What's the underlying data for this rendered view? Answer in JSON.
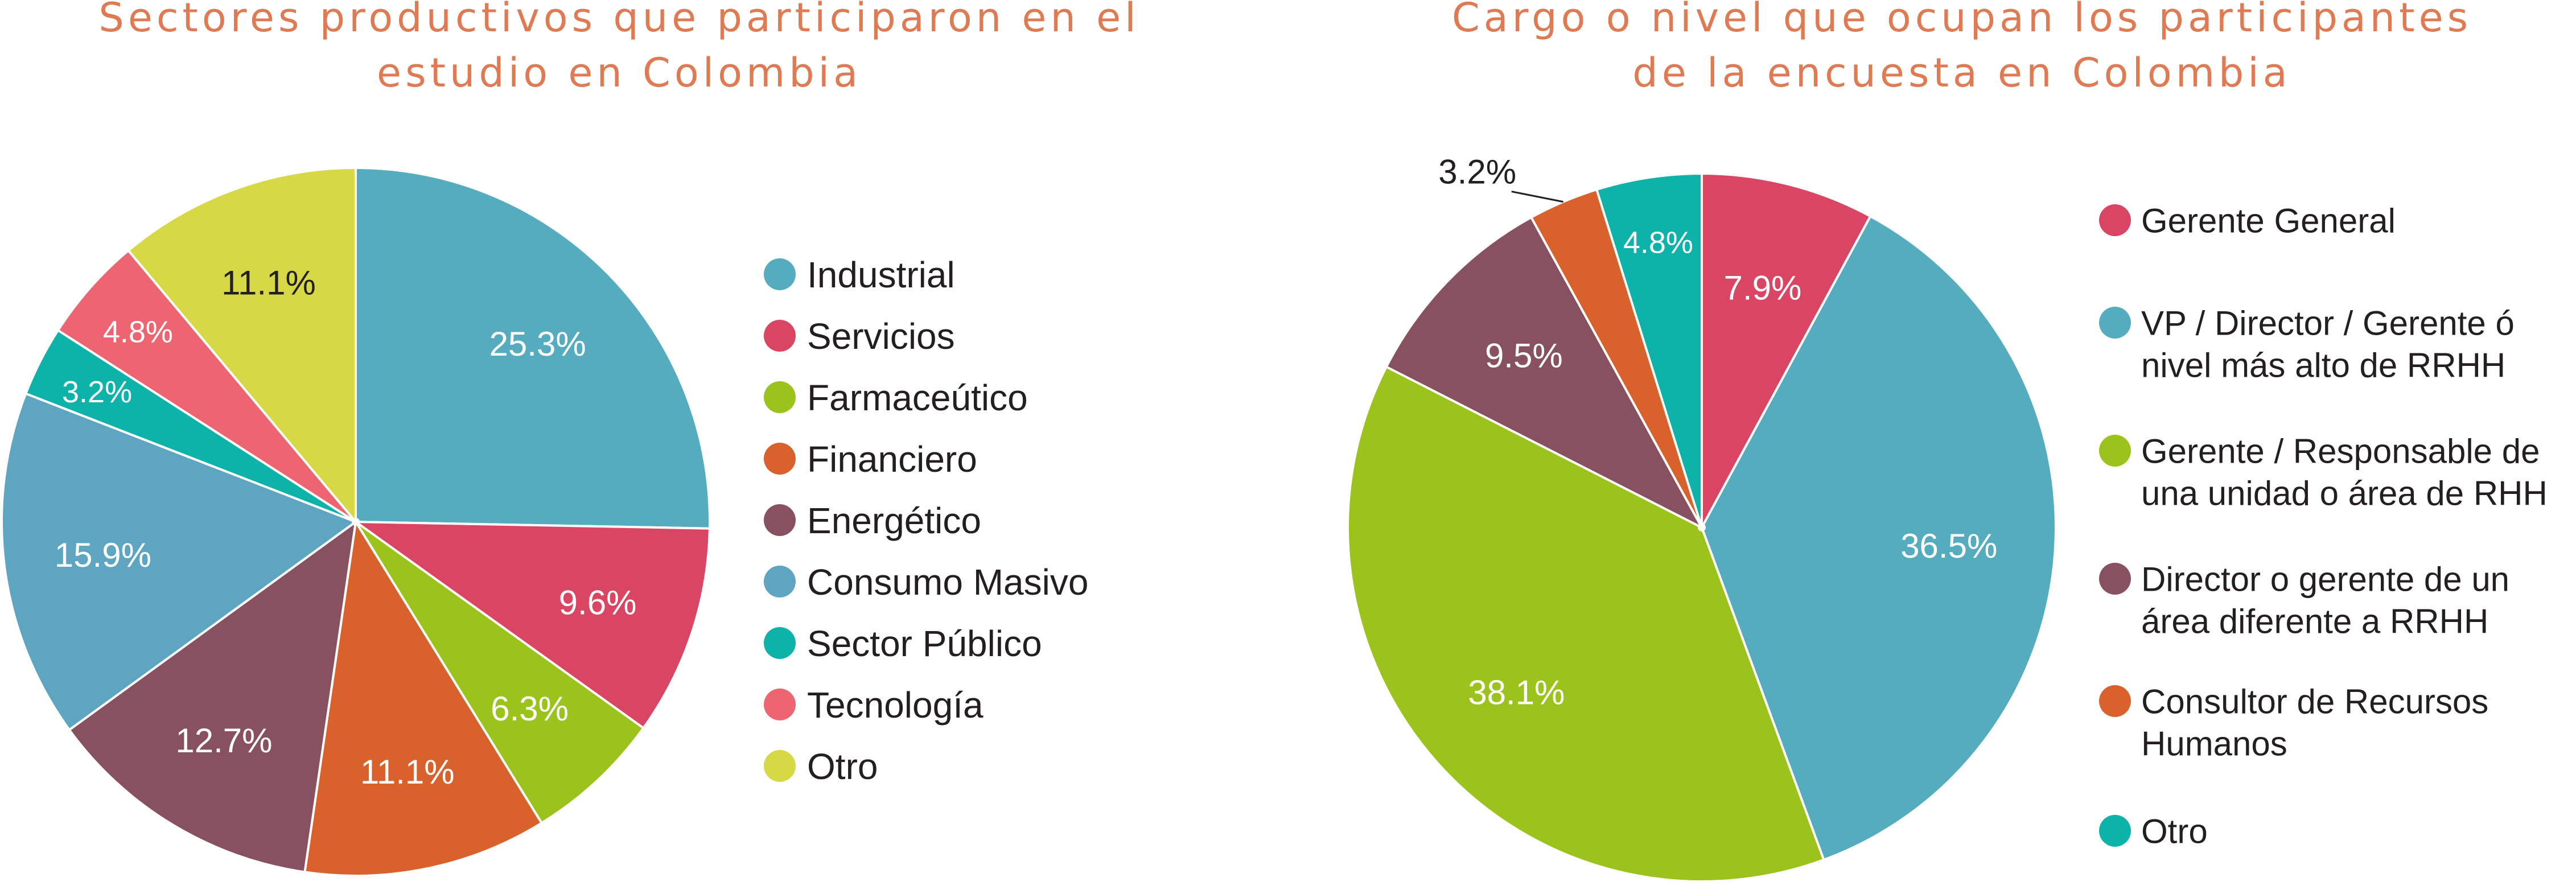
{
  "colors": {
    "title": "#E07A52",
    "slice_edge": "#ffffff",
    "legend_text": "#231F20",
    "label_light": "#ffffff",
    "label_dark": "#231F20"
  },
  "chart_data": [
    {
      "type": "pie",
      "title": "Sectores productivos que participaron en el estudio en Colombia",
      "title_lines": [
        "Sectores productivos que participaron en el",
        "estudio en Colombia"
      ],
      "legend_position": "right",
      "slices": [
        {
          "label": "Industrial",
          "value": 25.3,
          "value_label": "25.3%",
          "color": "#55ACBF",
          "label_color": "#ffffff"
        },
        {
          "label": "Servicios",
          "value": 9.6,
          "value_label": "9.6%",
          "color": "#D94563",
          "label_color": "#ffffff"
        },
        {
          "label": "Farmaceútico",
          "value": 6.3,
          "value_label": "6.3%",
          "color": "#9CC31B",
          "label_color": "#ffffff"
        },
        {
          "label": "Financiero",
          "value": 11.1,
          "value_label": "11.1%",
          "color": "#D9622C",
          "label_color": "#ffffff"
        },
        {
          "label": "Energético",
          "value": 12.7,
          "value_label": "12.7%",
          "color": "#87515F",
          "label_color": "#ffffff"
        },
        {
          "label": "Consumo Masivo",
          "value": 15.9,
          "value_label": "15.9%",
          "color": "#5DA5C1",
          "label_color": "#ffffff"
        },
        {
          "label": "Sector Público",
          "value": 3.2,
          "value_label": "3.2%",
          "color": "#0DB2A9",
          "label_color": "#ffffff"
        },
        {
          "label": "Tecnología",
          "value": 4.8,
          "value_label": "4.8%",
          "color": "#EC6570",
          "label_color": "#ffffff"
        },
        {
          "label": "Otro",
          "value": 11.1,
          "value_label": "11.1%",
          "color": "#D7D845",
          "label_color": "#231F20"
        }
      ]
    },
    {
      "type": "pie",
      "title": "Cargo o nivel que ocupan los participantes de la encuesta en Colombia",
      "title_lines": [
        "Cargo o nivel que ocupan los participantes",
        "de la encuesta en Colombia"
      ],
      "legend_position": "right",
      "slices": [
        {
          "label": "Gerente General",
          "label_lines": [
            "Gerente General"
          ],
          "value": 7.9,
          "value_label": "7.9%",
          "color": "#D94563",
          "label_color": "#ffffff"
        },
        {
          "label": "VP / Director / Gerente ó nivel más alto de RRHH",
          "label_lines": [
            "VP / Director / Gerente ó",
            "nivel más alto de RRHH"
          ],
          "value": 36.5,
          "value_label": "36.5%",
          "color": "#55ACBF",
          "label_color": "#ffffff"
        },
        {
          "label": "Gerente / Responsable de una unidad o área de RHH",
          "label_lines": [
            "Gerente / Responsable de",
            "una unidad o área de RHH"
          ],
          "value": 38.1,
          "value_label": "38.1%",
          "color": "#9CC31B",
          "label_color": "#ffffff"
        },
        {
          "label": "Director o gerente de un área diferente a RRHH",
          "label_lines": [
            "Director o gerente de un",
            "área diferente a RRHH"
          ],
          "value": 9.5,
          "value_label": "9.5%",
          "color": "#87515F",
          "label_color": "#ffffff"
        },
        {
          "label": "Consultor de Recursos Humanos",
          "label_lines": [
            "Consultor de Recursos",
            "Humanos"
          ],
          "value": 3.2,
          "value_label": "3.2%",
          "color": "#D9622C",
          "label_color": "#231F20",
          "outside_label": true
        },
        {
          "label": "Otro",
          "label_lines": [
            "Otro"
          ],
          "value": 4.8,
          "value_label": "4.8%",
          "color": "#0DB2A9",
          "label_color": "#ffffff"
        }
      ]
    }
  ]
}
